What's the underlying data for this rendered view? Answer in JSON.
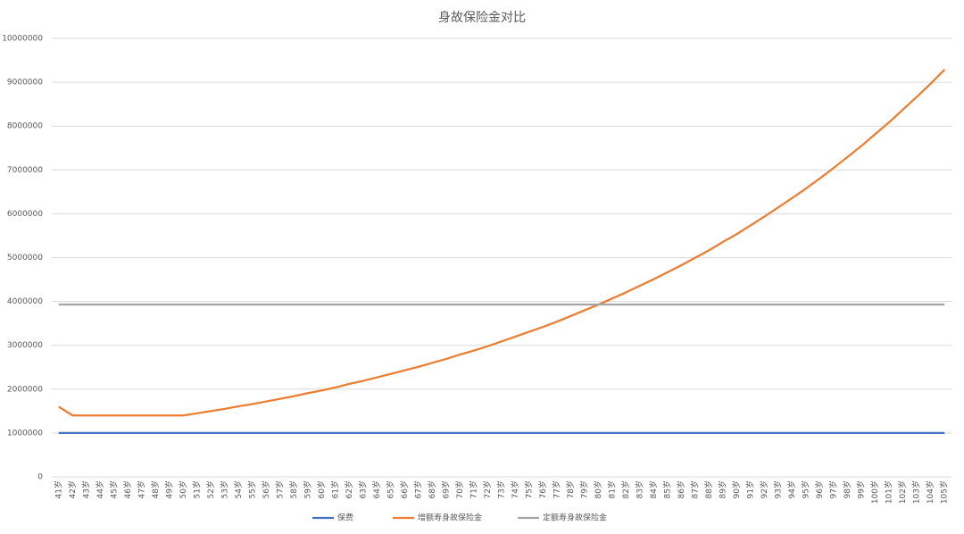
{
  "chart_data": {
    "type": "line",
    "title": "身故保险金对比",
    "categories": [
      "41岁",
      "42岁",
      "43岁",
      "44岁",
      "45岁",
      "46岁",
      "47岁",
      "48岁",
      "49岁",
      "50岁",
      "51岁",
      "52岁",
      "53岁",
      "54岁",
      "55岁",
      "56岁",
      "57岁",
      "58岁",
      "59岁",
      "60岁",
      "61岁",
      "62岁",
      "63岁",
      "64岁",
      "65岁",
      "66岁",
      "67岁",
      "68岁",
      "69岁",
      "70岁",
      "71岁",
      "72岁",
      "73岁",
      "74岁",
      "75岁",
      "76岁",
      "77岁",
      "78岁",
      "79岁",
      "80岁",
      "81岁",
      "82岁",
      "83岁",
      "84岁",
      "85岁",
      "86岁",
      "87岁",
      "88岁",
      "89岁",
      "90岁",
      "91岁",
      "92岁",
      "93岁",
      "94岁",
      "95岁",
      "96岁",
      "97岁",
      "98岁",
      "99岁",
      "100岁",
      "101岁",
      "102岁",
      "103岁",
      "104岁",
      "105岁"
    ],
    "series": [
      {
        "name": "保费",
        "color": "#4472c4",
        "values": [
          1000000,
          1000000,
          1000000,
          1000000,
          1000000,
          1000000,
          1000000,
          1000000,
          1000000,
          1000000,
          1000000,
          1000000,
          1000000,
          1000000,
          1000000,
          1000000,
          1000000,
          1000000,
          1000000,
          1000000,
          1000000,
          1000000,
          1000000,
          1000000,
          1000000,
          1000000,
          1000000,
          1000000,
          1000000,
          1000000,
          1000000,
          1000000,
          1000000,
          1000000,
          1000000,
          1000000,
          1000000,
          1000000,
          1000000,
          1000000,
          1000000,
          1000000,
          1000000,
          1000000,
          1000000,
          1000000,
          1000000,
          1000000,
          1000000,
          1000000,
          1000000,
          1000000,
          1000000,
          1000000,
          1000000,
          1000000,
          1000000,
          1000000,
          1000000,
          1000000,
          1000000,
          1000000,
          1000000,
          1000000,
          1000000
        ]
      },
      {
        "name": "增额寿身故保险金",
        "color": "#ed7d31",
        "values": [
          1600000,
          1400000,
          1400000,
          1400000,
          1400000,
          1400000,
          1400000,
          1400000,
          1400000,
          1400000,
          1450000,
          1500000,
          1550000,
          1610000,
          1660000,
          1720000,
          1780000,
          1840000,
          1910000,
          1970000,
          2040000,
          2120000,
          2190000,
          2270000,
          2350000,
          2430000,
          2510000,
          2600000,
          2690000,
          2790000,
          2880000,
          2980000,
          3090000,
          3200000,
          3310000,
          3420000,
          3540000,
          3670000,
          3800000,
          3930000,
          4070000,
          4210000,
          4360000,
          4510000,
          4670000,
          4830000,
          5000000,
          5170000,
          5360000,
          5540000,
          5740000,
          5940000,
          6150000,
          6360000,
          6580000,
          6810000,
          7050000,
          7300000,
          7550000,
          7820000,
          8090000,
          8380000,
          8670000,
          8970000,
          9290000
        ]
      },
      {
        "name": "定额寿身故保险金",
        "color": "#a5a5a5",
        "values": [
          3930000,
          3930000,
          3930000,
          3930000,
          3930000,
          3930000,
          3930000,
          3930000,
          3930000,
          3930000,
          3930000,
          3930000,
          3930000,
          3930000,
          3930000,
          3930000,
          3930000,
          3930000,
          3930000,
          3930000,
          3930000,
          3930000,
          3930000,
          3930000,
          3930000,
          3930000,
          3930000,
          3930000,
          3930000,
          3930000,
          3930000,
          3930000,
          3930000,
          3930000,
          3930000,
          3930000,
          3930000,
          3930000,
          3930000,
          3930000,
          3930000,
          3930000,
          3930000,
          3930000,
          3930000,
          3930000,
          3930000,
          3930000,
          3930000,
          3930000,
          3930000,
          3930000,
          3930000,
          3930000,
          3930000,
          3930000,
          3930000,
          3930000,
          3930000,
          3930000,
          3930000,
          3930000,
          3930000,
          3930000,
          3930000
        ]
      }
    ],
    "ylim": [
      0,
      10000000
    ],
    "yticks": [
      0,
      1000000,
      2000000,
      3000000,
      4000000,
      5000000,
      6000000,
      7000000,
      8000000,
      9000000,
      10000000
    ],
    "grid": true
  }
}
